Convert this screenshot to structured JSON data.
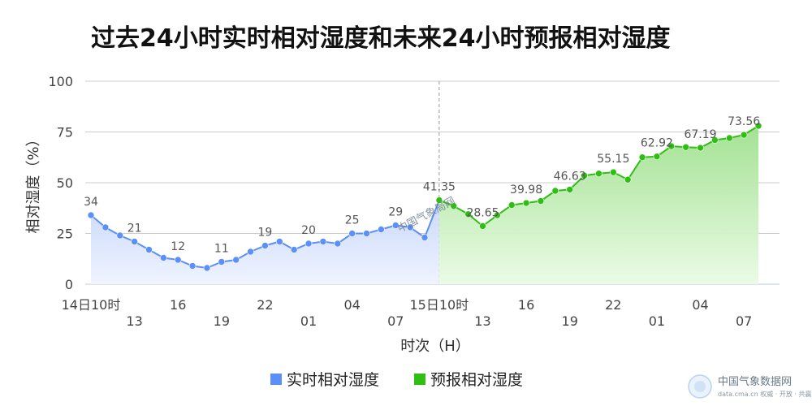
{
  "chart_data": {
    "type": "area",
    "title": "过去24小时实时相对湿度和未来24小时预报相对湿度",
    "ylabel": "相对湿度（%）",
    "xlabel": "时次（H）",
    "ylim": [
      0,
      100
    ],
    "yticks": [
      "0",
      "25",
      "50",
      "75",
      "100"
    ],
    "xticks": [
      {
        "label": "14日10时",
        "index": 0
      },
      {
        "label": "13",
        "index": 3
      },
      {
        "label": "16",
        "index": 6
      },
      {
        "label": "19",
        "index": 9
      },
      {
        "label": "22",
        "index": 12
      },
      {
        "label": "01",
        "index": 15
      },
      {
        "label": "04",
        "index": 18
      },
      {
        "label": "07",
        "index": 21
      },
      {
        "label": "15日10时",
        "index": 24
      },
      {
        "label": "13",
        "index": 27
      },
      {
        "label": "16",
        "index": 30
      },
      {
        "label": "19",
        "index": 33
      },
      {
        "label": "22",
        "index": 36
      },
      {
        "label": "01",
        "index": 39
      },
      {
        "label": "04",
        "index": 42
      },
      {
        "label": "07",
        "index": 45
      }
    ],
    "series": [
      {
        "name": "实时相对湿度",
        "color": "#5b8ff9",
        "start_index": 0,
        "values": [
          34,
          28,
          24,
          21,
          17,
          13,
          12,
          9,
          8,
          11,
          12,
          16,
          19,
          21,
          17,
          20,
          21,
          20,
          25,
          25,
          27,
          29,
          28,
          23,
          41.35
        ],
        "labels": [
          {
            "index": 0,
            "text": "34"
          },
          {
            "index": 3,
            "text": "21"
          },
          {
            "index": 6,
            "text": "12"
          },
          {
            "index": 9,
            "text": "11"
          },
          {
            "index": 12,
            "text": "19"
          },
          {
            "index": 15,
            "text": "20"
          },
          {
            "index": 18,
            "text": "25"
          },
          {
            "index": 21,
            "text": "29"
          }
        ]
      },
      {
        "name": "预报相对湿度",
        "color": "#2fbf12",
        "start_index": 24,
        "values": [
          41.35,
          38.5,
          34.5,
          28.65,
          34,
          39,
          39.98,
          41,
          46,
          46.63,
          53.5,
          54.5,
          55.15,
          51.5,
          62.5,
          62.92,
          68,
          67.5,
          67.19,
          71,
          72,
          73.56,
          78
        ],
        "labels": [
          {
            "index": 24,
            "text": "41.35"
          },
          {
            "index": 27,
            "text": "28.65"
          },
          {
            "index": 30,
            "text": "39.98"
          },
          {
            "index": 33,
            "text": "46.63"
          },
          {
            "index": 36,
            "text": "55.15"
          },
          {
            "index": 39,
            "text": "62.92"
          },
          {
            "index": 42,
            "text": "67.19"
          },
          {
            "index": 45,
            "text": "73.56"
          }
        ]
      }
    ],
    "legend_position": "bottom-center",
    "grid": true
  },
  "watermark": {
    "center_text": "中国气象局网",
    "corner_text": "中国气象数据网",
    "corner_sub": "data.cma.cn 权威 · 开放 · 共赢"
  }
}
